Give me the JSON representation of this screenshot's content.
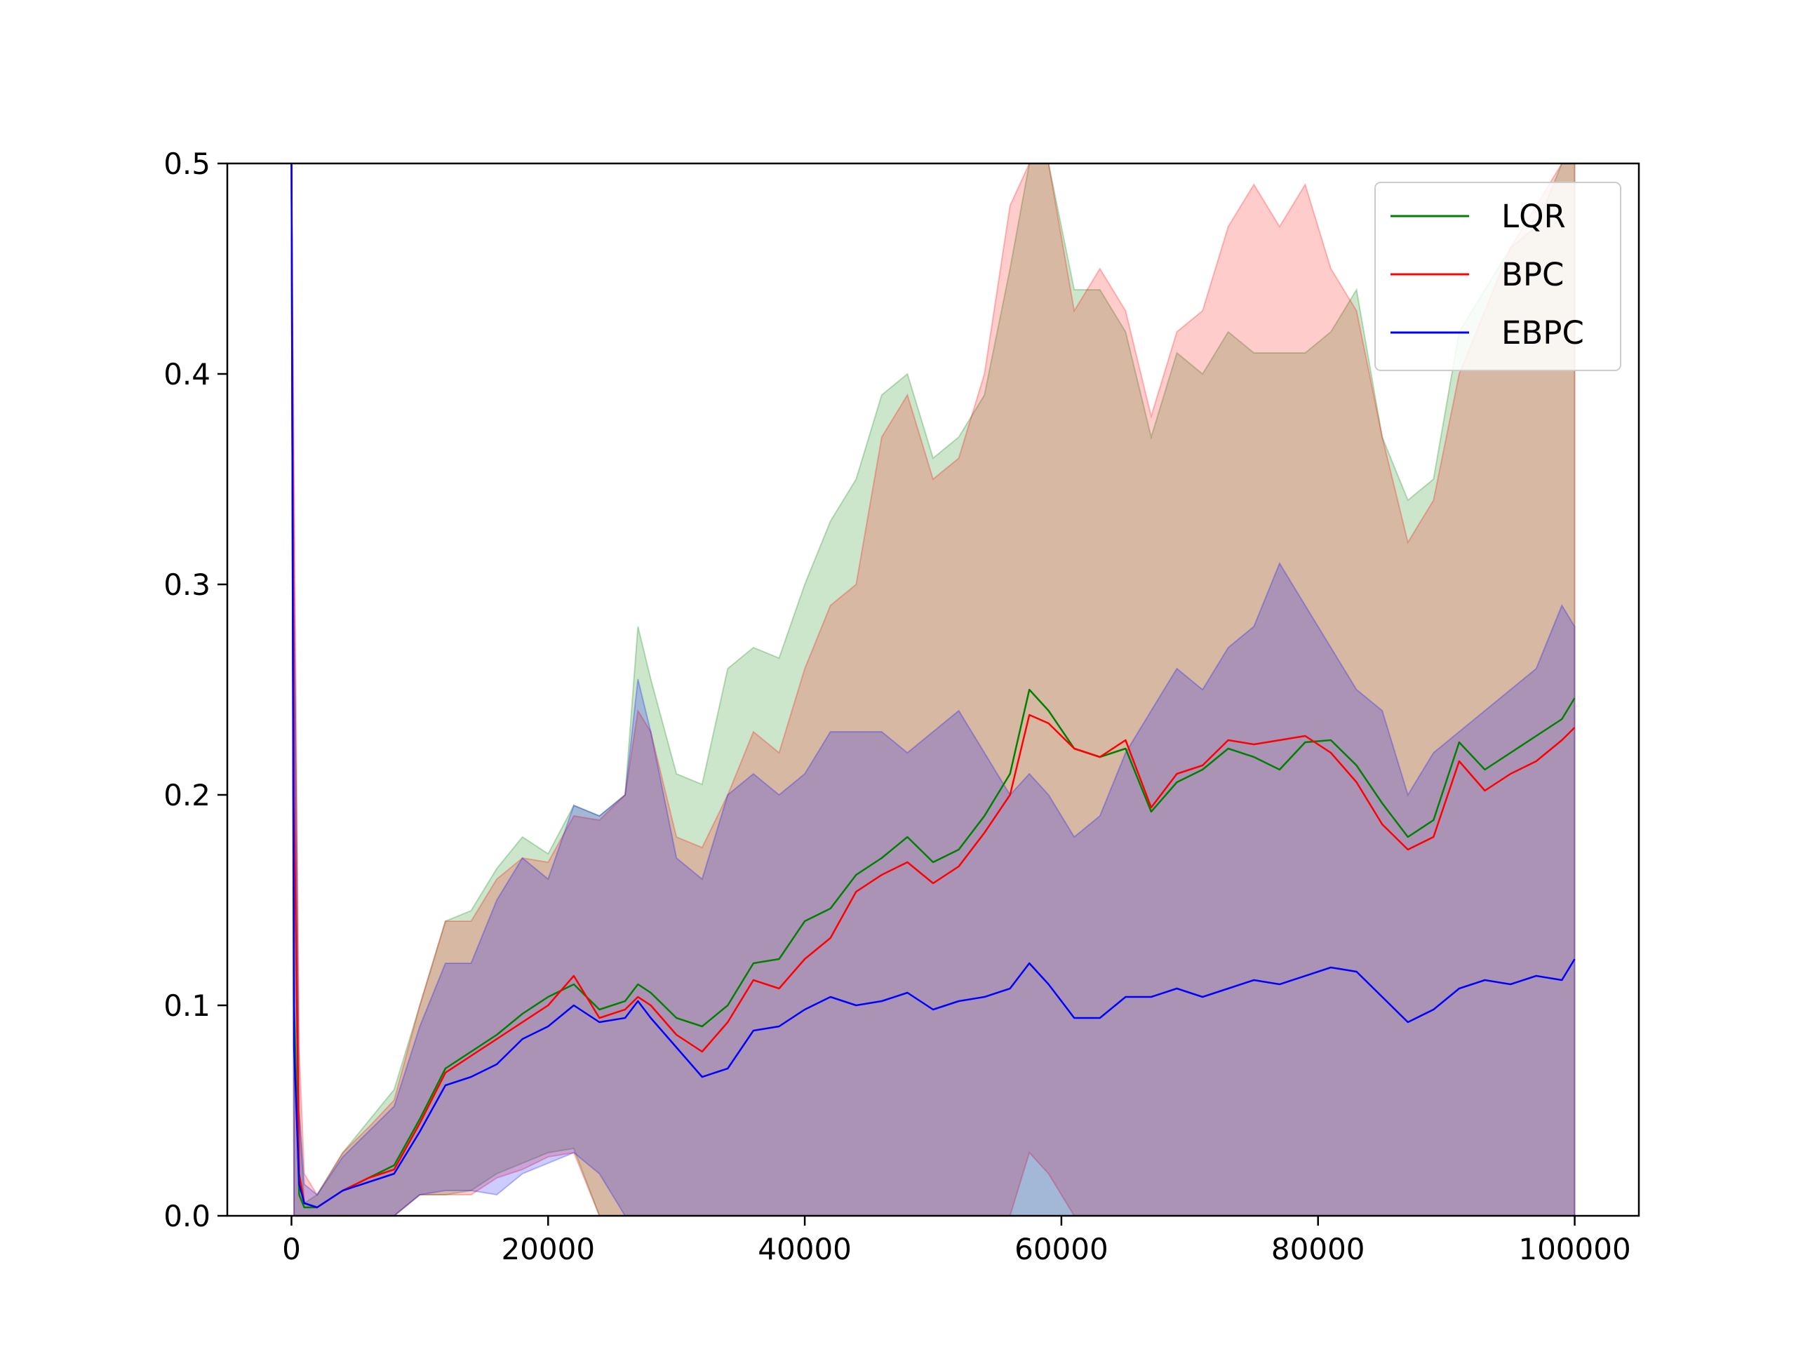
{
  "chart_data": {
    "type": "line",
    "title": "",
    "xlabel": "",
    "ylabel": "",
    "xlim": [
      -5000,
      105000
    ],
    "ylim": [
      0,
      0.5
    ],
    "xticks": [
      0,
      20000,
      40000,
      60000,
      80000,
      100000
    ],
    "xtick_labels": [
      "0",
      "20000",
      "40000",
      "60000",
      "80000",
      "100000"
    ],
    "yticks": [
      0.0,
      0.1,
      0.2,
      0.3,
      0.4,
      0.5
    ],
    "ytick_labels": [
      "0.0",
      "0.1",
      "0.2",
      "0.3",
      "0.4",
      "0.5"
    ],
    "grid": false,
    "legend_position": "top-right",
    "x": [
      0,
      200,
      600,
      1000,
      2000,
      4000,
      6000,
      8000,
      10000,
      12000,
      14000,
      16000,
      18000,
      20000,
      22000,
      24000,
      26000,
      27000,
      28000,
      30000,
      32000,
      34000,
      36000,
      38000,
      40000,
      42000,
      44000,
      46000,
      48000,
      50000,
      52000,
      54000,
      56000,
      57500,
      59000,
      61000,
      63000,
      65000,
      67000,
      69000,
      71000,
      73000,
      75000,
      77000,
      79000,
      81000,
      83000,
      85000,
      87000,
      89000,
      91000,
      93000,
      95000,
      97000,
      99000,
      100000
    ],
    "series": [
      {
        "name": "LQR",
        "color": "#008000",
        "mean": [
          0.5,
          0.1,
          0.01,
          0.004,
          0.004,
          0.012,
          0.018,
          0.024,
          0.046,
          0.07,
          0.078,
          0.086,
          0.096,
          0.104,
          0.11,
          0.098,
          0.102,
          0.11,
          0.106,
          0.094,
          0.09,
          0.1,
          0.12,
          0.122,
          0.14,
          0.146,
          0.162,
          0.17,
          0.18,
          0.168,
          0.174,
          0.19,
          0.21,
          0.25,
          0.24,
          0.222,
          0.218,
          0.222,
          0.192,
          0.206,
          0.212,
          0.222,
          0.218,
          0.212,
          0.225,
          0.226,
          0.214,
          0.196,
          0.18,
          0.188,
          0.225,
          0.212,
          0.22,
          0.228,
          0.236,
          0.246
        ],
        "upper": [
          0.5,
          0.3,
          0.05,
          0.006,
          0.01,
          0.03,
          0.045,
          0.06,
          0.1,
          0.14,
          0.145,
          0.165,
          0.18,
          0.172,
          0.195,
          0.19,
          0.2,
          0.28,
          0.255,
          0.21,
          0.205,
          0.26,
          0.27,
          0.265,
          0.3,
          0.33,
          0.35,
          0.39,
          0.4,
          0.36,
          0.37,
          0.39,
          0.45,
          0.5,
          0.5,
          0.44,
          0.44,
          0.42,
          0.37,
          0.41,
          0.4,
          0.42,
          0.41,
          0.41,
          0.41,
          0.42,
          0.44,
          0.37,
          0.34,
          0.35,
          0.42,
          0.44,
          0.46,
          0.47,
          0.5,
          0.5
        ],
        "lower": [
          0.5,
          0.0,
          0.0,
          0.0,
          0.0,
          0.0,
          0.0,
          0.0,
          0.01,
          0.01,
          0.012,
          0.02,
          0.025,
          0.03,
          0.032,
          0.0,
          0.0,
          0.0,
          0.0,
          0.0,
          0.0,
          0.0,
          0.0,
          0.0,
          0.0,
          0.0,
          0.0,
          0.0,
          0.0,
          0.0,
          0.0,
          0.0,
          0.0,
          0.0,
          0.0,
          0.0,
          0.0,
          0.0,
          0.0,
          0.0,
          0.0,
          0.0,
          0.0,
          0.0,
          0.0,
          0.0,
          0.0,
          0.0,
          0.0,
          0.0,
          0.0,
          0.0,
          0.0,
          0.0,
          0.0,
          0.0
        ]
      },
      {
        "name": "BPC",
        "color": "#ff0000",
        "mean": [
          0.5,
          0.2,
          0.02,
          0.006,
          0.004,
          0.012,
          0.018,
          0.022,
          0.044,
          0.068,
          0.076,
          0.084,
          0.092,
          0.1,
          0.114,
          0.094,
          0.098,
          0.104,
          0.1,
          0.086,
          0.078,
          0.092,
          0.112,
          0.108,
          0.122,
          0.132,
          0.154,
          0.162,
          0.168,
          0.158,
          0.166,
          0.182,
          0.2,
          0.238,
          0.234,
          0.222,
          0.218,
          0.226,
          0.194,
          0.21,
          0.214,
          0.226,
          0.224,
          0.226,
          0.228,
          0.22,
          0.206,
          0.186,
          0.174,
          0.18,
          0.216,
          0.202,
          0.21,
          0.216,
          0.226,
          0.232
        ],
        "upper": [
          0.5,
          0.35,
          0.08,
          0.02,
          0.01,
          0.03,
          0.042,
          0.055,
          0.1,
          0.14,
          0.14,
          0.16,
          0.17,
          0.168,
          0.19,
          0.188,
          0.2,
          0.24,
          0.23,
          0.18,
          0.175,
          0.2,
          0.23,
          0.22,
          0.26,
          0.29,
          0.3,
          0.37,
          0.39,
          0.35,
          0.36,
          0.4,
          0.48,
          0.5,
          0.5,
          0.43,
          0.45,
          0.43,
          0.38,
          0.42,
          0.43,
          0.47,
          0.49,
          0.47,
          0.49,
          0.45,
          0.43,
          0.37,
          0.32,
          0.34,
          0.4,
          0.43,
          0.46,
          0.48,
          0.5,
          0.5
        ],
        "lower": [
          0.5,
          0.0,
          0.0,
          0.0,
          0.0,
          0.0,
          0.0,
          0.0,
          0.01,
          0.01,
          0.01,
          0.018,
          0.022,
          0.028,
          0.03,
          0.0,
          0.0,
          0.0,
          0.0,
          0.0,
          0.0,
          0.0,
          0.0,
          0.0,
          0.0,
          0.0,
          0.0,
          0.0,
          0.0,
          0.0,
          0.0,
          0.0,
          0.0,
          0.03,
          0.02,
          0.0,
          0.0,
          0.0,
          0.0,
          0.0,
          0.0,
          0.0,
          0.0,
          0.0,
          0.0,
          0.0,
          0.0,
          0.0,
          0.0,
          0.0,
          0.0,
          0.0,
          0.0,
          0.0,
          0.0,
          0.0
        ]
      },
      {
        "name": "EBPC",
        "color": "#0000ff",
        "mean": [
          0.5,
          0.08,
          0.015,
          0.006,
          0.004,
          0.012,
          0.016,
          0.02,
          0.04,
          0.062,
          0.066,
          0.072,
          0.084,
          0.09,
          0.1,
          0.092,
          0.094,
          0.102,
          0.094,
          0.08,
          0.066,
          0.07,
          0.088,
          0.09,
          0.098,
          0.104,
          0.1,
          0.102,
          0.106,
          0.098,
          0.102,
          0.104,
          0.108,
          0.12,
          0.11,
          0.094,
          0.094,
          0.104,
          0.104,
          0.108,
          0.104,
          0.108,
          0.112,
          0.11,
          0.114,
          0.118,
          0.116,
          0.104,
          0.092,
          0.098,
          0.108,
          0.112,
          0.11,
          0.114,
          0.112,
          0.122
        ],
        "upper": [
          0.5,
          0.3,
          0.05,
          0.015,
          0.01,
          0.028,
          0.04,
          0.052,
          0.09,
          0.12,
          0.12,
          0.15,
          0.17,
          0.16,
          0.195,
          0.19,
          0.2,
          0.255,
          0.23,
          0.17,
          0.16,
          0.2,
          0.21,
          0.2,
          0.21,
          0.23,
          0.23,
          0.23,
          0.22,
          0.23,
          0.24,
          0.22,
          0.2,
          0.21,
          0.2,
          0.18,
          0.19,
          0.22,
          0.24,
          0.26,
          0.25,
          0.27,
          0.28,
          0.31,
          0.29,
          0.27,
          0.25,
          0.24,
          0.2,
          0.22,
          0.23,
          0.24,
          0.25,
          0.26,
          0.29,
          0.28
        ],
        "lower": [
          0.5,
          0.0,
          0.0,
          0.0,
          0.0,
          0.0,
          0.0,
          0.0,
          0.01,
          0.012,
          0.012,
          0.01,
          0.02,
          0.025,
          0.03,
          0.02,
          0.0,
          0.0,
          0.0,
          0.0,
          0.0,
          0.0,
          0.0,
          0.0,
          0.0,
          0.0,
          0.0,
          0.0,
          0.0,
          0.0,
          0.0,
          0.0,
          0.0,
          0.0,
          0.0,
          0.0,
          0.0,
          0.0,
          0.0,
          0.0,
          0.0,
          0.0,
          0.0,
          0.0,
          0.0,
          0.0,
          0.0,
          0.0,
          0.0,
          0.0,
          0.0,
          0.0,
          0.0,
          0.0,
          0.0,
          0.0
        ]
      }
    ]
  }
}
